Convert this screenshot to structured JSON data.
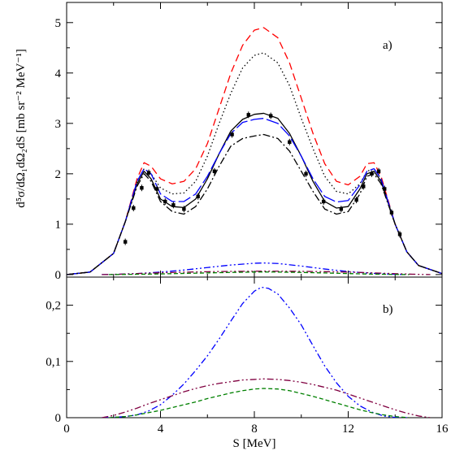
{
  "chart_data": [
    {
      "panel": "a",
      "type": "line",
      "panel_label": "a)",
      "ylabel": "d⁵σ/dΩ₁dΩ₂dS [mb sr⁻² MeV⁻¹]",
      "xlim": [
        0,
        16
      ],
      "ylim": [
        -0.05,
        5.4
      ],
      "yticks": [
        0,
        1,
        2,
        3,
        4,
        5
      ],
      "ytick_labels": [
        "0",
        "1",
        "2",
        "3",
        "4",
        "5"
      ],
      "grid": false,
      "series": [
        {
          "style": "red-dashed",
          "color": "#ff0000",
          "dash": "9,5",
          "x": [
            0,
            1,
            2,
            2.5,
            3,
            3.3,
            3.6,
            4,
            4.5,
            5,
            5.5,
            6,
            6.5,
            7,
            7.5,
            8,
            8.4,
            9,
            9.5,
            10,
            10.5,
            11,
            11.5,
            12,
            12.5,
            12.8,
            13.1,
            13.4,
            14,
            14.5,
            15,
            16
          ],
          "y": [
            0,
            0.05,
            0.42,
            1.05,
            1.9,
            2.22,
            2.15,
            1.9,
            1.8,
            1.85,
            2.1,
            2.6,
            3.3,
            4.0,
            4.55,
            4.85,
            4.9,
            4.7,
            4.2,
            3.5,
            2.8,
            2.2,
            1.85,
            1.78,
            1.95,
            2.2,
            2.22,
            1.95,
            1.0,
            0.45,
            0.18,
            0.02
          ]
        },
        {
          "style": "black-dotted",
          "color": "#000000",
          "dash": "1.5,3",
          "x": [
            0,
            1,
            2,
            2.5,
            3,
            3.3,
            3.6,
            4,
            4.5,
            5,
            5.5,
            6,
            6.5,
            7,
            7.5,
            8,
            8.4,
            9,
            9.5,
            10,
            10.5,
            11,
            11.5,
            12,
            12.5,
            12.8,
            13.1,
            13.4,
            14,
            14.5,
            15,
            16
          ],
          "y": [
            0,
            0.05,
            0.42,
            1.05,
            1.85,
            2.1,
            2.0,
            1.72,
            1.6,
            1.62,
            1.85,
            2.35,
            3.0,
            3.6,
            4.1,
            4.35,
            4.4,
            4.2,
            3.75,
            3.1,
            2.5,
            1.95,
            1.65,
            1.6,
            1.8,
            2.05,
            2.1,
            1.9,
            1.0,
            0.45,
            0.18,
            0.02
          ]
        },
        {
          "style": "black-solid",
          "color": "#000000",
          "dash": "",
          "x": [
            0,
            1,
            2,
            2.5,
            3,
            3.3,
            3.6,
            4,
            4.5,
            5,
            5.5,
            6,
            6.5,
            7,
            7.5,
            8,
            8.4,
            9,
            9.5,
            10,
            10.5,
            11,
            11.5,
            12,
            12.5,
            12.8,
            13.1,
            13.4,
            14,
            14.5,
            15,
            16
          ],
          "y": [
            0,
            0.05,
            0.42,
            1.05,
            1.8,
            2.05,
            1.9,
            1.5,
            1.35,
            1.33,
            1.5,
            1.9,
            2.4,
            2.85,
            3.08,
            3.18,
            3.2,
            3.1,
            2.8,
            2.35,
            1.85,
            1.45,
            1.32,
            1.35,
            1.7,
            2.0,
            2.05,
            1.85,
            1.0,
            0.45,
            0.18,
            0.02
          ]
        },
        {
          "style": "blue-longdash",
          "color": "#0000ff",
          "dash": "16,4",
          "x": [
            0,
            1,
            2,
            2.5,
            3,
            3.3,
            3.6,
            4,
            4.5,
            5,
            5.5,
            6,
            6.5,
            7,
            7.5,
            8,
            8.4,
            9,
            9.5,
            10,
            10.5,
            11,
            11.5,
            12,
            12.5,
            12.8,
            13.1,
            13.4,
            14,
            14.5,
            15,
            16
          ],
          "y": [
            0,
            0.05,
            0.42,
            1.05,
            1.85,
            2.1,
            2.0,
            1.6,
            1.45,
            1.45,
            1.6,
            1.95,
            2.4,
            2.8,
            3.02,
            3.08,
            3.1,
            3.0,
            2.75,
            2.35,
            1.9,
            1.55,
            1.44,
            1.47,
            1.78,
            2.05,
            2.1,
            1.9,
            1.0,
            0.45,
            0.18,
            0.02
          ]
        },
        {
          "style": "black-dashdot",
          "color": "#000000",
          "dash": "9,3,2,3",
          "x": [
            0,
            1,
            2,
            2.5,
            3,
            3.3,
            3.6,
            4,
            4.5,
            5,
            5.5,
            6,
            6.5,
            7,
            7.5,
            8,
            8.4,
            9,
            9.5,
            10,
            10.5,
            11,
            11.5,
            12,
            12.5,
            12.8,
            13.1,
            13.4,
            14,
            14.5,
            15,
            16
          ],
          "y": [
            0,
            0.05,
            0.42,
            1.05,
            1.75,
            2.0,
            1.85,
            1.45,
            1.25,
            1.2,
            1.35,
            1.7,
            2.15,
            2.55,
            2.7,
            2.75,
            2.78,
            2.7,
            2.45,
            2.05,
            1.65,
            1.3,
            1.2,
            1.25,
            1.6,
            1.95,
            2.0,
            1.8,
            1.0,
            0.45,
            0.18,
            0.02
          ]
        },
        {
          "style": "blue-dashdotdot",
          "color": "#0000ff",
          "dash": "8,3,2,3,2,3",
          "x": [
            1.5,
            2,
            3,
            4,
            5,
            6,
            7,
            8,
            8.4,
            9,
            10,
            11,
            12,
            13,
            14,
            14.5
          ],
          "y": [
            0,
            0.003,
            0.02,
            0.05,
            0.09,
            0.14,
            0.19,
            0.225,
            0.23,
            0.22,
            0.17,
            0.11,
            0.06,
            0.025,
            0.005,
            0
          ]
        },
        {
          "style": "maroon-dashdotdot",
          "color": "#800040",
          "dash": "8,3,2,3,2,3",
          "x": [
            1.5,
            2,
            3,
            4,
            5,
            6,
            7,
            8,
            8.4,
            9,
            10,
            11,
            12,
            13,
            14,
            15,
            15.5
          ],
          "y": [
            0,
            0.003,
            0.02,
            0.036,
            0.048,
            0.057,
            0.063,
            0.067,
            0.068,
            0.067,
            0.064,
            0.058,
            0.049,
            0.035,
            0.018,
            0.004,
            0
          ]
        },
        {
          "style": "green-dashed",
          "color": "#008000",
          "dash": "5,3",
          "x": [
            1.8,
            2,
            3,
            4,
            5,
            6,
            7,
            8,
            8.4,
            9,
            10,
            11,
            12,
            13,
            14,
            14.6
          ],
          "y": [
            0,
            0.001,
            0.006,
            0.013,
            0.023,
            0.033,
            0.043,
            0.05,
            0.052,
            0.05,
            0.043,
            0.032,
            0.02,
            0.009,
            0.002,
            0
          ]
        }
      ],
      "data_points": {
        "x": [
          2.5,
          2.85,
          3.2,
          3.5,
          3.85,
          4.2,
          4.55,
          5.0,
          5.6,
          6.3,
          7.05,
          7.75,
          8.7,
          9.5,
          10.2,
          10.95,
          11.7,
          12.35,
          12.65,
          13.0,
          13.3,
          13.55,
          13.85,
          14.2
        ],
        "y": [
          0.65,
          1.32,
          1.72,
          2.02,
          1.7,
          1.45,
          1.38,
          1.3,
          1.55,
          2.05,
          2.78,
          3.17,
          3.15,
          2.63,
          2.0,
          1.45,
          1.3,
          1.48,
          1.75,
          2.0,
          2.05,
          1.7,
          1.23,
          0.8
        ]
      }
    },
    {
      "panel": "b",
      "type": "line",
      "panel_label": "b)",
      "xlabel": "S [MeV]",
      "xlim": [
        0,
        16
      ],
      "ylim": [
        0,
        0.25
      ],
      "xticks": [
        0,
        4,
        8,
        12,
        16
      ],
      "xtick_labels": [
        "0",
        "4",
        "8",
        "12",
        "16"
      ],
      "yticks": [
        0,
        0.1,
        0.2
      ],
      "ytick_labels": [
        "0",
        "0,1",
        "0,2"
      ],
      "grid": false,
      "series": [
        {
          "style": "blue-dashdotdot",
          "color": "#0000ff",
          "dash": "8,3,2,3,2,3",
          "x": [
            1.5,
            2,
            2.5,
            3,
            3.5,
            4,
            4.5,
            5,
            5.5,
            6,
            6.5,
            7,
            7.5,
            8,
            8.3,
            8.6,
            9,
            9.5,
            10,
            10.5,
            11,
            11.5,
            12,
            12.5,
            13,
            13.5,
            14,
            14.5
          ],
          "y": [
            0,
            0.0005,
            0.002,
            0.005,
            0.012,
            0.023,
            0.04,
            0.06,
            0.084,
            0.11,
            0.14,
            0.172,
            0.203,
            0.225,
            0.232,
            0.23,
            0.22,
            0.195,
            0.165,
            0.128,
            0.092,
            0.062,
            0.038,
            0.021,
            0.01,
            0.003,
            0.0005,
            0
          ]
        },
        {
          "style": "maroon-dashdotdot",
          "color": "#800040",
          "dash": "8,3,2,3,2,3",
          "x": [
            1.5,
            2,
            2.5,
            3,
            3.5,
            4,
            4.5,
            5,
            5.5,
            6,
            6.5,
            7,
            7.5,
            8,
            8.4,
            9,
            9.5,
            10,
            10.5,
            11,
            11.5,
            12,
            12.5,
            13,
            13.5,
            14,
            14.5,
            15,
            15.5
          ],
          "y": [
            0,
            0.004,
            0.01,
            0.017,
            0.025,
            0.032,
            0.039,
            0.046,
            0.052,
            0.057,
            0.061,
            0.064,
            0.067,
            0.068,
            0.069,
            0.068,
            0.066,
            0.063,
            0.059,
            0.054,
            0.049,
            0.042,
            0.035,
            0.028,
            0.021,
            0.014,
            0.008,
            0.003,
            0
          ]
        },
        {
          "style": "green-dashed",
          "color": "#008000",
          "dash": "5,3",
          "x": [
            1.8,
            2.5,
            3,
            3.5,
            4,
            4.5,
            5,
            5.5,
            6,
            6.5,
            7,
            7.5,
            8,
            8.4,
            9,
            9.5,
            10,
            10.5,
            11,
            11.5,
            12,
            12.5,
            13,
            13.5,
            14,
            14.6
          ],
          "y": [
            0,
            0.002,
            0.005,
            0.009,
            0.013,
            0.018,
            0.023,
            0.028,
            0.034,
            0.039,
            0.044,
            0.048,
            0.051,
            0.052,
            0.051,
            0.048,
            0.043,
            0.038,
            0.032,
            0.026,
            0.02,
            0.014,
            0.009,
            0.005,
            0.002,
            0
          ]
        }
      ]
    }
  ]
}
